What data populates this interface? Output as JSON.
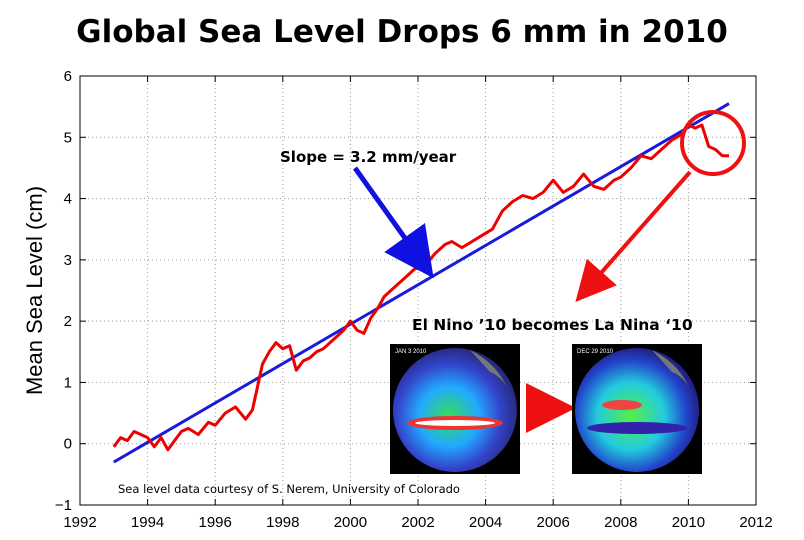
{
  "title": "Global Sea Level Drops 6 mm in 2010",
  "slope_label": "Slope = 3.2 mm/year",
  "insets_title": "El Nino ’10 becomes La Nina ‘10",
  "inset_left_caption": "JAN 3 2010",
  "inset_right_caption": "DEC 29 2010",
  "credit": "Sea level data courtesy of S. Nerem, University of Colorado",
  "colors": {
    "series": "#ee0000",
    "trend": "#1a1adc",
    "arrow_blue": "#1010e0",
    "arrow_red": "#ee1111"
  },
  "chart_data": {
    "type": "line",
    "title": "Global Sea Level Drops 6 mm in 2010",
    "xlabel": "",
    "ylabel": "Mean Sea Level (cm)",
    "xlim": [
      1992,
      2012
    ],
    "ylim": [
      -1,
      6
    ],
    "xticks": [
      1992,
      1994,
      1996,
      1998,
      2000,
      2002,
      2004,
      2006,
      2008,
      2010,
      2012
    ],
    "yticks": [
      -1,
      0,
      1,
      2,
      3,
      4,
      5,
      6
    ],
    "grid": true,
    "series": [
      {
        "name": "",
        "x": [
          1993.0,
          1993.2,
          1993.4,
          1993.6,
          1993.8,
          1994.0,
          1994.2,
          1994.4,
          1994.6,
          1994.8,
          1995.0,
          1995.2,
          1995.5,
          1995.8,
          1996.0,
          1996.3,
          1996.6,
          1996.9,
          1997.1,
          1997.4,
          1997.6,
          1997.8,
          1998.0,
          1998.2,
          1998.4,
          1998.6,
          1998.8,
          1999.0,
          1999.2,
          1999.5,
          1999.8,
          2000.0,
          2000.2,
          2000.4,
          2000.6,
          2000.8,
          2001.0,
          2001.3,
          2001.6,
          2001.9,
          2002.2,
          2002.5,
          2002.8,
          2003.0,
          2003.3,
          2003.6,
          2003.9,
          2004.2,
          2004.5,
          2004.8,
          2005.1,
          2005.4,
          2005.7,
          2006.0,
          2006.3,
          2006.6,
          2006.9,
          2007.2,
          2007.5,
          2007.8,
          2008.0,
          2008.3,
          2008.6,
          2008.9,
          2009.2,
          2009.5,
          2009.8,
          2010.0,
          2010.2,
          2010.4,
          2010.6,
          2010.8,
          2011.0,
          2011.2
        ],
        "values": [
          -0.05,
          0.1,
          0.05,
          0.2,
          0.15,
          0.1,
          -0.05,
          0.1,
          -0.1,
          0.05,
          0.2,
          0.25,
          0.15,
          0.35,
          0.3,
          0.5,
          0.6,
          0.4,
          0.55,
          1.3,
          1.5,
          1.65,
          1.55,
          1.6,
          1.2,
          1.35,
          1.4,
          1.5,
          1.55,
          1.7,
          1.85,
          2.0,
          1.85,
          1.8,
          2.05,
          2.2,
          2.4,
          2.55,
          2.7,
          2.85,
          2.9,
          3.1,
          3.25,
          3.3,
          3.2,
          3.3,
          3.4,
          3.5,
          3.8,
          3.95,
          4.05,
          4.0,
          4.1,
          4.3,
          4.1,
          4.2,
          4.4,
          4.2,
          4.15,
          4.3,
          4.35,
          4.5,
          4.7,
          4.65,
          4.8,
          4.95,
          5.05,
          5.2,
          5.15,
          5.2,
          4.85,
          4.8,
          4.7,
          4.7
        ]
      },
      {
        "name": "",
        "x": [
          1993.0,
          2011.2
        ],
        "values": [
          -0.3,
          5.55
        ]
      }
    ]
  }
}
